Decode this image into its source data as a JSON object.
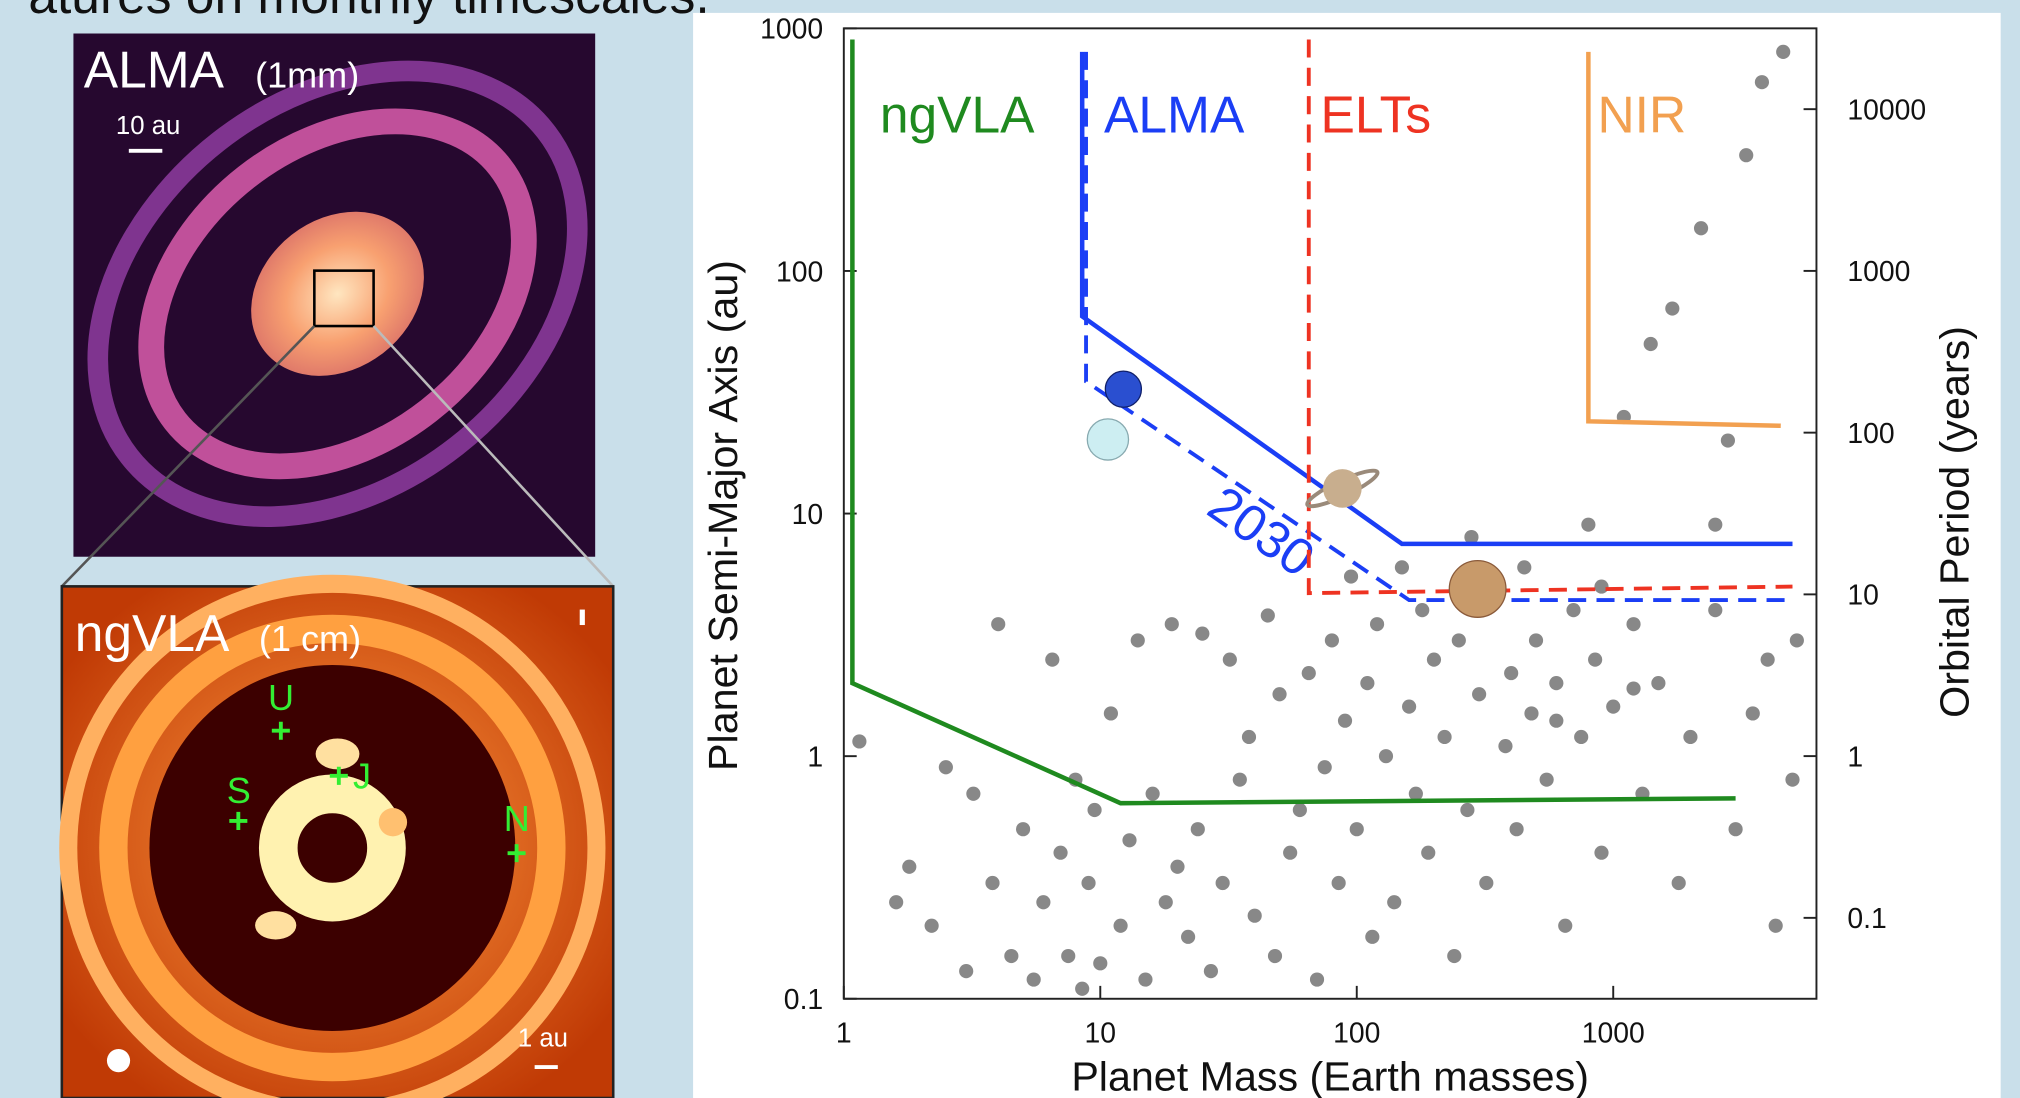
{
  "header": {
    "text": "atures on monthly timescales."
  },
  "panels": [
    {
      "title": "ALMA",
      "subtitle": "(1mm)",
      "scale_label": "10 au"
    },
    {
      "title": "ngVLA",
      "subtitle": "(1 cm)",
      "scale_label": "1 au",
      "planet_labels": [
        "U",
        "S",
        "J",
        "N"
      ]
    }
  ],
  "chart_data": {
    "type": "scatter",
    "xlabel": "Planet Mass (Earth masses)",
    "ylabel": "Planet Semi-Major Axis (au)",
    "y2label": "Orbital Period (years)",
    "xscale": "log",
    "yscale": "log",
    "xlim": [
      1,
      6200
    ],
    "ylim": [
      0.1,
      1000
    ],
    "y2lim": [
      0.0316,
      31600
    ],
    "xticks": [
      1,
      10,
      100,
      1000
    ],
    "yticks": [
      0.1,
      1,
      10,
      100,
      1000
    ],
    "y2ticks": [
      0.1,
      1,
      10,
      100,
      1000,
      10000
    ],
    "color": "#888888",
    "x": [
      1.15,
      1.6,
      1.8,
      2.2,
      2.5,
      3,
      3.2,
      3.8,
      4,
      4.5,
      5,
      5.5,
      6,
      6.5,
      7,
      7.5,
      8,
      8.5,
      9,
      9.5,
      10,
      11,
      12,
      13,
      14,
      15,
      16,
      18,
      19,
      20,
      22,
      24,
      25,
      27,
      30,
      32,
      35,
      38,
      40,
      45,
      48,
      50,
      55,
      60,
      65,
      70,
      75,
      80,
      85,
      90,
      95,
      100,
      110,
      115,
      120,
      130,
      140,
      150,
      160,
      170,
      180,
      190,
      200,
      220,
      240,
      250,
      270,
      280,
      300,
      320,
      350,
      380,
      400,
      420,
      450,
      480,
      500,
      550,
      600,
      650,
      700,
      750,
      800,
      850,
      900,
      1000,
      1100,
      1200,
      1300,
      1400,
      1500,
      1700,
      1800,
      2000,
      2200,
      2500,
      2800,
      3000,
      3300,
      3500,
      3800,
      4000,
      4300,
      4600,
      5000,
      5200,
      600,
      900,
      1200,
      2500
    ],
    "y": [
      1.15,
      0.25,
      0.35,
      0.2,
      0.9,
      0.13,
      0.7,
      0.3,
      3.5,
      0.15,
      0.5,
      0.12,
      0.25,
      2.5,
      0.4,
      0.15,
      0.8,
      0.11,
      0.3,
      0.6,
      0.14,
      1.5,
      0.2,
      0.45,
      3,
      0.12,
      0.7,
      0.25,
      3.5,
      0.35,
      0.18,
      0.5,
      3.2,
      0.13,
      0.3,
      2.5,
      0.8,
      1.2,
      0.22,
      3.8,
      0.15,
      1.8,
      0.4,
      0.6,
      2.2,
      0.12,
      0.9,
      3,
      0.3,
      1.4,
      5.5,
      0.5,
      2,
      0.18,
      3.5,
      1,
      0.25,
      6,
      1.6,
      0.7,
      4,
      0.4,
      2.5,
      1.2,
      0.15,
      3,
      0.6,
      8,
      1.8,
      0.3,
      4.5,
      1.1,
      2.2,
      0.5,
      6,
      1.5,
      3,
      0.8,
      2,
      0.2,
      4,
      1.2,
      9,
      2.5,
      0.4,
      1.6,
      25,
      3.5,
      0.7,
      50,
      2,
      70,
      0.3,
      1.2,
      150,
      4,
      20,
      0.5,
      300,
      1.5,
      600,
      2.5,
      0.2,
      800,
      0.8,
      3,
      1.4,
      5,
      1.9,
      9
    ],
    "curves": [
      {
        "name": "ngVLA",
        "color": "#1f8a1f",
        "dashed": false,
        "x": [
          1.08,
          1.08,
          12,
          3000
        ],
        "y": [
          900,
          2,
          0.64,
          0.67
        ]
      },
      {
        "name": "ALMA",
        "color": "#1b3ef5",
        "dashed": false,
        "x": [
          8.5,
          8.5,
          150,
          5000
        ],
        "y": [
          800,
          65,
          7.5,
          7.5
        ]
      },
      {
        "name": "2030",
        "color": "#1b3ef5",
        "dashed": true,
        "x": [
          8.8,
          8.8,
          160,
          5000
        ],
        "y": [
          800,
          35,
          4.4,
          4.4
        ]
      },
      {
        "name": "ELTs",
        "color": "#ee3322",
        "dashed": true,
        "x": [
          65,
          65,
          5000
        ],
        "y": [
          900,
          4.7,
          5
        ]
      },
      {
        "name": "NIR",
        "color": "#f2a050",
        "dashed": false,
        "x": [
          800,
          800,
          4500
        ],
        "y": [
          800,
          24,
          23
        ]
      }
    ]
  }
}
